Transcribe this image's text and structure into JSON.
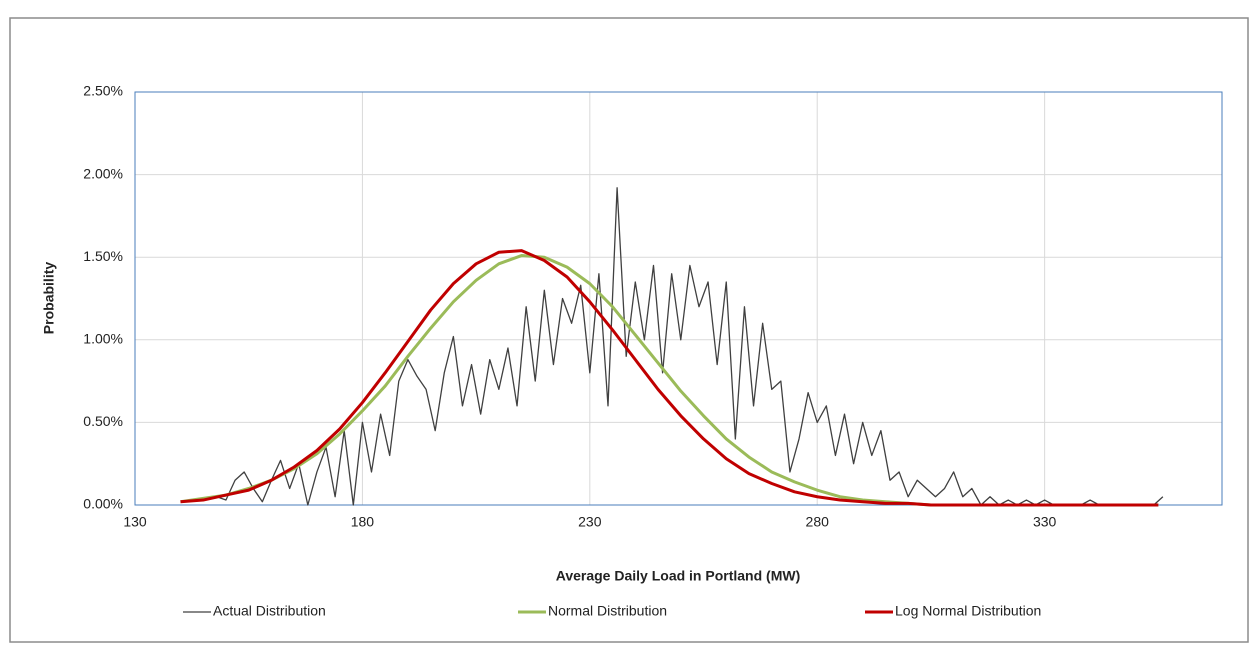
{
  "chart_data": {
    "type": "line",
    "y_label": "Probability",
    "x_label": "Average Daily Load in Portland (MW)",
    "xlim": [
      130,
      369
    ],
    "xticks": [
      130,
      180,
      230,
      280,
      330
    ],
    "ylim": [
      0,
      2.5
    ],
    "yticks": [
      {
        "value": 0,
        "label": "0.00%"
      },
      {
        "value": 0.5,
        "label": "0.50%"
      },
      {
        "value": 1,
        "label": "1.00%"
      },
      {
        "value": 1.5,
        "label": "1.50%"
      },
      {
        "value": 2,
        "label": "2.00%"
      },
      {
        "value": 2.5,
        "label": "2.50%"
      }
    ],
    "grid": true,
    "legend": "bottom",
    "series": [
      {
        "name": "Actual Distribution",
        "color": "#404040",
        "x": [
          148,
          150,
          152,
          154,
          156,
          158,
          160,
          162,
          164,
          166,
          168,
          170,
          172,
          174,
          176,
          178,
          180,
          182,
          184,
          186,
          188,
          190,
          192,
          194,
          196,
          198,
          200,
          202,
          204,
          206,
          208,
          210,
          212,
          214,
          216,
          218,
          220,
          222,
          224,
          226,
          228,
          230,
          232,
          234,
          236,
          238,
          240,
          242,
          244,
          246,
          248,
          250,
          252,
          254,
          256,
          258,
          260,
          262,
          264,
          266,
          268,
          270,
          272,
          274,
          276,
          278,
          280,
          282,
          284,
          286,
          288,
          290,
          292,
          294,
          296,
          298,
          300,
          302,
          304,
          306,
          308,
          310,
          312,
          314,
          316,
          318,
          320,
          322,
          324,
          326,
          328,
          330,
          332,
          334,
          336,
          338,
          340,
          342,
          344,
          346,
          348,
          350,
          352,
          354,
          356
        ],
        "values": [
          0.05,
          0.03,
          0.15,
          0.2,
          0.1,
          0.02,
          0.15,
          0.27,
          0.1,
          0.25,
          0,
          0.2,
          0.35,
          0.05,
          0.45,
          0,
          0.5,
          0.2,
          0.55,
          0.3,
          0.75,
          0.88,
          0.78,
          0.7,
          0.45,
          0.8,
          1.02,
          0.6,
          0.85,
          0.55,
          0.88,
          0.7,
          0.95,
          0.6,
          1.2,
          0.75,
          1.3,
          0.85,
          1.25,
          1.1,
          1.33,
          0.8,
          1.4,
          0.6,
          1.92,
          0.9,
          1.35,
          1,
          1.45,
          0.8,
          1.4,
          1,
          1.45,
          1.2,
          1.35,
          0.85,
          1.35,
          0.4,
          1.2,
          0.6,
          1.1,
          0.7,
          0.75,
          0.2,
          0.4,
          0.68,
          0.5,
          0.6,
          0.3,
          0.55,
          0.25,
          0.5,
          0.3,
          0.45,
          0.15,
          0.2,
          0.05,
          0.15,
          0.1,
          0.05,
          0.1,
          0.2,
          0.05,
          0.1,
          0,
          0.05,
          0,
          0.03,
          0,
          0.03,
          0,
          0.03,
          0,
          0,
          0,
          0,
          0.03,
          0,
          0,
          0,
          0,
          0,
          0,
          0,
          0.05
        ]
      },
      {
        "name": "Normal Distribution",
        "color": "#9bbb59",
        "x": [
          140,
          145,
          150,
          155,
          160,
          165,
          170,
          175,
          180,
          185,
          190,
          195,
          200,
          205,
          210,
          215,
          220,
          225,
          230,
          235,
          240,
          245,
          250,
          255,
          260,
          265,
          270,
          275,
          280,
          285,
          290,
          295,
          300,
          305,
          310,
          315,
          320,
          325,
          330,
          335,
          340,
          345,
          350,
          355
        ],
        "values": [
          0.02,
          0.04,
          0.06,
          0.1,
          0.15,
          0.22,
          0.31,
          0.43,
          0.57,
          0.72,
          0.9,
          1.07,
          1.23,
          1.36,
          1.46,
          1.51,
          1.5,
          1.44,
          1.34,
          1.2,
          1.03,
          0.86,
          0.69,
          0.54,
          0.4,
          0.29,
          0.2,
          0.14,
          0.09,
          0.05,
          0.03,
          0.02,
          0.01,
          0,
          0,
          0,
          0,
          0,
          0,
          0,
          0,
          0,
          0,
          0
        ]
      },
      {
        "name": "Log Normal Distribution",
        "color": "#c00000",
        "x": [
          140,
          145,
          150,
          155,
          160,
          165,
          170,
          175,
          180,
          185,
          190,
          195,
          200,
          205,
          210,
          215,
          220,
          225,
          230,
          235,
          240,
          245,
          250,
          255,
          260,
          265,
          270,
          275,
          280,
          285,
          290,
          295,
          300,
          305,
          310,
          315,
          320,
          325,
          330,
          335,
          340,
          345,
          350,
          355
        ],
        "values": [
          0.02,
          0.03,
          0.06,
          0.09,
          0.15,
          0.23,
          0.33,
          0.46,
          0.62,
          0.8,
          0.99,
          1.18,
          1.34,
          1.46,
          1.53,
          1.54,
          1.48,
          1.38,
          1.23,
          1.06,
          0.88,
          0.7,
          0.54,
          0.4,
          0.28,
          0.19,
          0.13,
          0.08,
          0.05,
          0.03,
          0.02,
          0.01,
          0.01,
          0,
          0,
          0,
          0,
          0,
          0,
          0,
          0,
          0,
          0,
          0
        ]
      }
    ]
  }
}
